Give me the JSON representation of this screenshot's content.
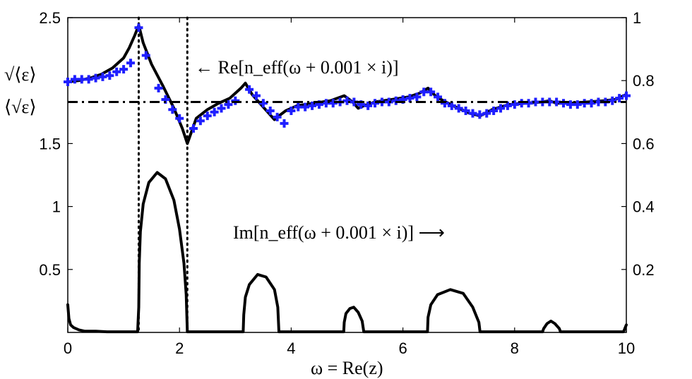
{
  "chart_data": {
    "type": "line",
    "xlabel": "ω = Re(z)",
    "xlim": [
      0,
      10
    ],
    "x_ticks": [
      0,
      2,
      4,
      6,
      8,
      10
    ],
    "y_left_lim": [
      0,
      2.5
    ],
    "y_left_ticks": [
      0.5,
      1,
      1.5,
      2.5
    ],
    "y_right_lim": [
      0,
      1
    ],
    "y_right_ticks": [
      0.2,
      0.4,
      0.6,
      0.8,
      1
    ],
    "left_axis_side_labels": {
      "sqrt_mean_eps": "√⟨ε⟩",
      "mean_sqrt_eps": "⟨√ε⟩"
    },
    "annotations": {
      "re_label": "← Re[n_eff(ω + 0.001 × i)]",
      "im_label": "Im[n_eff(ω + 0.001 × i)] ⟶"
    },
    "vertical_dotted_lines_x": [
      1.27,
      2.14
    ],
    "mean_sqrt_eps_level": 1.83,
    "grid": false,
    "colors": {
      "line": "#000000",
      "markers": "#1f1fff"
    },
    "series": [
      {
        "axis": "left",
        "style": "solid",
        "x": [
          0,
          0.2,
          0.4,
          0.6,
          0.8,
          1.0,
          1.1,
          1.2,
          1.27,
          1.35,
          1.5,
          1.7,
          1.9,
          2.05,
          2.14,
          2.3,
          2.5,
          2.7,
          2.9,
          3.1,
          3.18,
          3.3,
          3.5,
          3.7,
          3.78,
          3.9,
          4.1,
          4.4,
          4.7,
          4.95,
          5.1,
          5.2,
          5.3,
          5.5,
          5.8,
          6.1,
          6.3,
          6.45,
          6.6,
          6.9,
          7.2,
          7.38,
          7.6,
          7.9,
          8.2,
          8.5,
          8.62,
          8.75,
          9.0,
          9.3,
          9.6,
          9.8,
          10.0
        ],
        "y": [
          1.99,
          2.0,
          2.02,
          2.05,
          2.1,
          2.18,
          2.26,
          2.36,
          2.44,
          2.3,
          2.13,
          1.96,
          1.78,
          1.62,
          1.5,
          1.7,
          1.77,
          1.82,
          1.86,
          1.94,
          1.98,
          1.89,
          1.79,
          1.69,
          1.72,
          1.76,
          1.8,
          1.82,
          1.84,
          1.88,
          1.83,
          1.78,
          1.8,
          1.83,
          1.85,
          1.87,
          1.9,
          1.94,
          1.87,
          1.8,
          1.74,
          1.72,
          1.77,
          1.81,
          1.82,
          1.83,
          1.84,
          1.82,
          1.82,
          1.83,
          1.84,
          1.85,
          1.89
        ]
      },
      {
        "axis": "left",
        "style": "plus-markers",
        "x": [
          0,
          0.125,
          0.25,
          0.375,
          0.5,
          0.625,
          0.75,
          0.875,
          1.0,
          1.125,
          1.27,
          1.4,
          1.625,
          1.75,
          1.875,
          2.0,
          2.25,
          2.375,
          2.5,
          2.625,
          2.75,
          2.875,
          3.0,
          3.25,
          3.375,
          3.5,
          3.625,
          3.75,
          3.875,
          4.0,
          4.125,
          4.25,
          4.375,
          4.5,
          4.625,
          4.75,
          4.875,
          5.0,
          5.125,
          5.25,
          5.375,
          5.5,
          5.625,
          5.75,
          5.875,
          6.0,
          6.125,
          6.25,
          6.375,
          6.5,
          6.625,
          6.75,
          6.875,
          7.0,
          7.125,
          7.25,
          7.375,
          7.5,
          7.625,
          7.75,
          7.875,
          8.0,
          8.125,
          8.25,
          8.375,
          8.5,
          8.625,
          8.75,
          8.875,
          9.0,
          9.125,
          9.25,
          9.375,
          9.5,
          9.625,
          9.75,
          9.875,
          10.0
        ],
        "y": [
          1.99,
          2.01,
          2.01,
          2.01,
          2.02,
          2.03,
          2.04,
          2.07,
          2.09,
          2.14,
          2.42,
          2.2,
          1.94,
          1.85,
          1.77,
          1.7,
          1.62,
          1.68,
          1.72,
          1.75,
          1.78,
          1.81,
          1.84,
          1.93,
          1.88,
          1.82,
          1.76,
          1.71,
          1.66,
          1.76,
          1.79,
          1.79,
          1.8,
          1.81,
          1.82,
          1.82,
          1.83,
          1.84,
          1.83,
          1.81,
          1.8,
          1.82,
          1.83,
          1.83,
          1.84,
          1.85,
          1.86,
          1.87,
          1.91,
          1.91,
          1.87,
          1.82,
          1.8,
          1.78,
          1.76,
          1.74,
          1.73,
          1.74,
          1.76,
          1.78,
          1.8,
          1.81,
          1.82,
          1.82,
          1.83,
          1.83,
          1.83,
          1.83,
          1.82,
          1.81,
          1.81,
          1.82,
          1.82,
          1.83,
          1.83,
          1.84,
          1.86,
          1.88
        ]
      },
      {
        "axis": "left",
        "style": "dash-dot",
        "x": [
          0,
          10
        ],
        "y": [
          1.83,
          1.83
        ]
      },
      {
        "axis": "left",
        "style": "solid",
        "x": [
          0,
          0.02,
          0.05,
          0.1,
          0.2,
          0.3,
          0.5,
          0.7,
          1.0,
          1.25,
          1.27,
          1.28,
          1.3,
          1.35,
          1.45,
          1.6,
          1.75,
          1.9,
          2.0,
          2.08,
          2.12,
          2.14,
          2.2,
          2.5,
          3.0,
          3.14,
          3.15,
          3.18,
          3.25,
          3.4,
          3.55,
          3.7,
          3.76,
          3.78,
          3.9,
          4.5,
          4.94,
          4.95,
          4.98,
          5.05,
          5.12,
          5.2,
          5.27,
          5.3,
          5.6,
          6.2,
          6.44,
          6.45,
          6.5,
          6.62,
          6.85,
          7.08,
          7.25,
          7.36,
          7.38,
          8.0,
          8.5,
          8.52,
          8.58,
          8.65,
          8.72,
          8.8,
          8.82,
          9.5,
          9.95,
          10.0
        ],
        "y": [
          0.22,
          0.11,
          0.06,
          0.04,
          0.02,
          0.01,
          0.01,
          0.005,
          0.005,
          0.005,
          0.2,
          0.55,
          0.8,
          1.02,
          1.19,
          1.27,
          1.22,
          1.05,
          0.82,
          0.55,
          0.3,
          0.005,
          0.005,
          0.005,
          0.005,
          0.005,
          0.14,
          0.28,
          0.38,
          0.46,
          0.44,
          0.34,
          0.2,
          0.005,
          0.005,
          0.005,
          0.005,
          0.08,
          0.15,
          0.19,
          0.2,
          0.16,
          0.09,
          0.005,
          0.005,
          0.005,
          0.005,
          0.12,
          0.22,
          0.3,
          0.34,
          0.31,
          0.2,
          0.08,
          0.005,
          0.005,
          0.005,
          0.03,
          0.07,
          0.09,
          0.07,
          0.03,
          0.005,
          0.005,
          0.005,
          0.06
        ]
      }
    ]
  }
}
